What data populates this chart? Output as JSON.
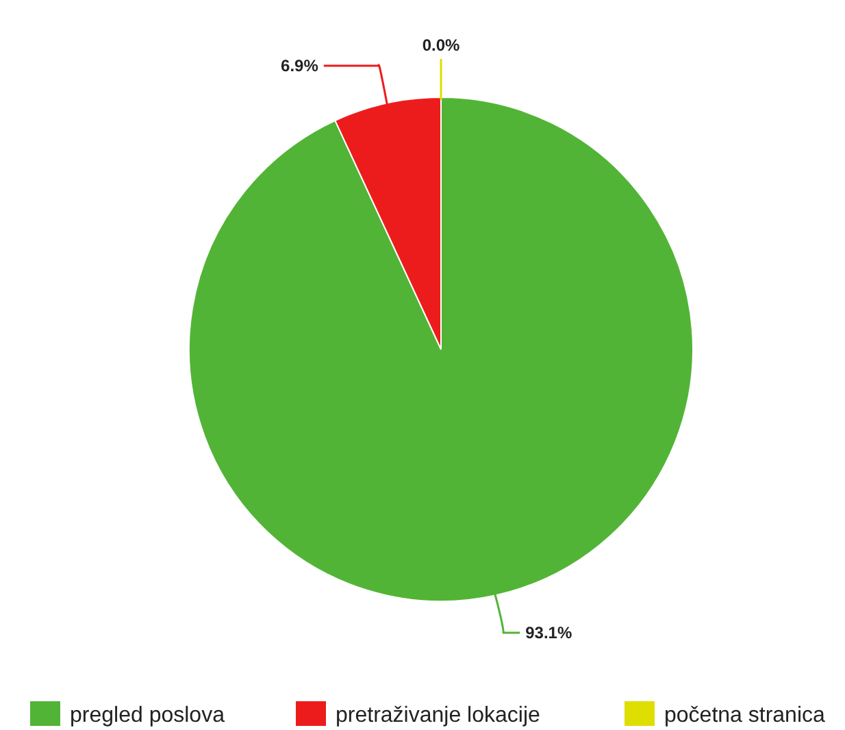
{
  "chart_data": {
    "type": "pie",
    "categories": [
      "pregled poslova",
      "pretraživanje lokacije",
      "početna stranica"
    ],
    "values": [
      93.1,
      6.9,
      0.0
    ],
    "colors": [
      "#52b436",
      "#ed1c1c",
      "#dede00"
    ],
    "value_labels": [
      "93.1%",
      "6.9%",
      "0.0%"
    ],
    "legend": "bottom"
  }
}
